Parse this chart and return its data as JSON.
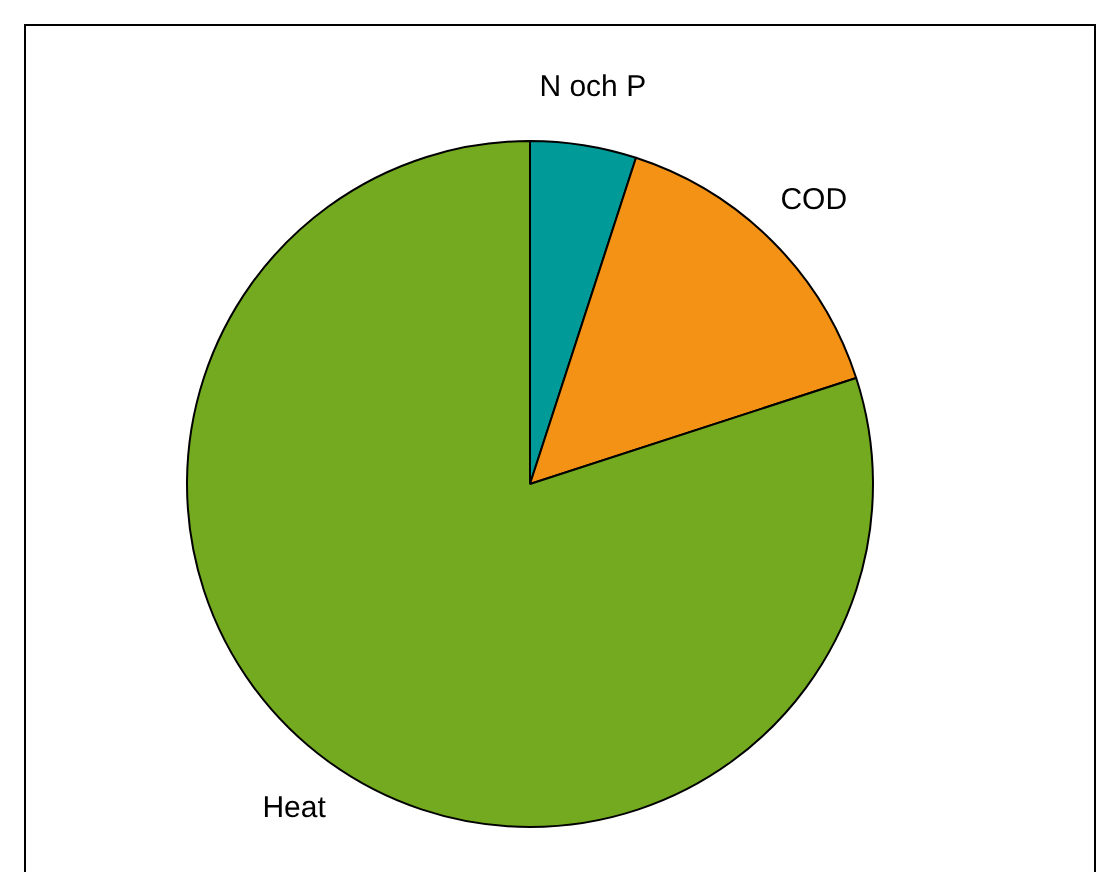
{
  "chart_data": {
    "type": "pie",
    "categories": [
      "N och P",
      "COD",
      "Heat"
    ],
    "values": [
      5,
      15,
      80
    ],
    "colors": [
      "#009b98",
      "#f39214",
      "#74aa20"
    ]
  }
}
